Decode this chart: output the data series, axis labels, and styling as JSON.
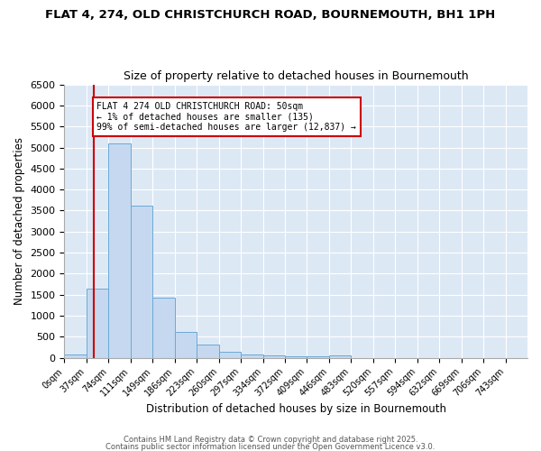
{
  "title1": "FLAT 4, 274, OLD CHRISTCHURCH ROAD, BOURNEMOUTH, BH1 1PH",
  "title2": "Size of property relative to detached houses in Bournemouth",
  "xlabel": "Distribution of detached houses by size in Bournemouth",
  "ylabel": "Number of detached properties",
  "bin_labels": [
    "0sqm",
    "37sqm",
    "74sqm",
    "111sqm",
    "149sqm",
    "186sqm",
    "223sqm",
    "260sqm",
    "297sqm",
    "334sqm",
    "372sqm",
    "409sqm",
    "446sqm",
    "483sqm",
    "520sqm",
    "557sqm",
    "594sqm",
    "632sqm",
    "669sqm",
    "706sqm",
    "743sqm"
  ],
  "bar_heights": [
    75,
    1650,
    5100,
    3620,
    1420,
    620,
    310,
    140,
    85,
    55,
    45,
    30,
    60,
    0,
    0,
    0,
    0,
    0,
    0,
    0,
    0
  ],
  "bar_color": "#c5d8f0",
  "bar_edge_color": "#6aaad4",
  "marker_color": "#cc0000",
  "annotation_text": "FLAT 4 274 OLD CHRISTCHURCH ROAD: 50sqm\n← 1% of detached houses are smaller (135)\n99% of semi-detached houses are larger (12,837) →",
  "annotation_box_color": "#ffffff",
  "annotation_box_edge_color": "#cc0000",
  "ylim": [
    0,
    6500
  ],
  "yticks": [
    0,
    500,
    1000,
    1500,
    2000,
    2500,
    3000,
    3500,
    4000,
    4500,
    5000,
    5500,
    6000,
    6500
  ],
  "bg_color": "#dde8f5",
  "fig_color": "#ffffff",
  "footer1": "Contains HM Land Registry data © Crown copyright and database right 2025.",
  "footer2": "Contains public sector information licensed under the Open Government Licence v3.0."
}
